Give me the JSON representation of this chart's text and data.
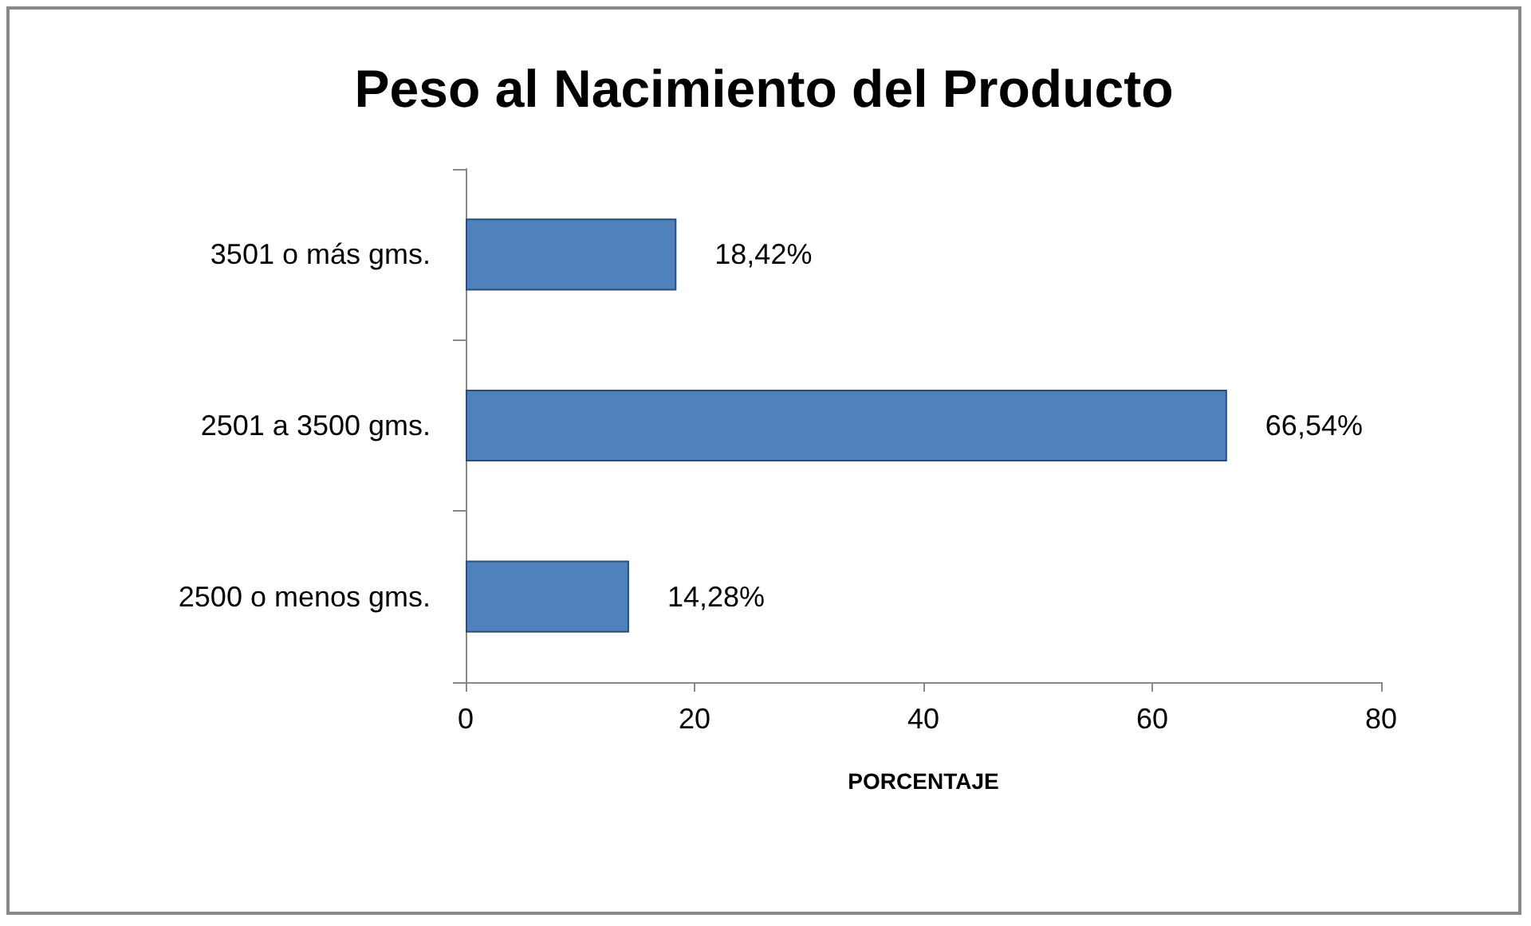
{
  "chart_data": {
    "type": "bar",
    "orientation": "horizontal",
    "title": "Peso al Nacimiento del Producto",
    "xlabel": "PORCENTAJE",
    "categories": [
      "3501 o más gms.",
      "2501 a 3500 gms.",
      "2500 o menos gms."
    ],
    "values": [
      18.42,
      66.54,
      14.28
    ],
    "color": "#4f81bd",
    "value_labels": [
      "18,42%",
      "66,54%",
      "14,28%"
    ],
    "xlim": [
      0,
      80
    ],
    "xticks": [
      0,
      20,
      40,
      60,
      80
    ],
    "grid": false
  }
}
